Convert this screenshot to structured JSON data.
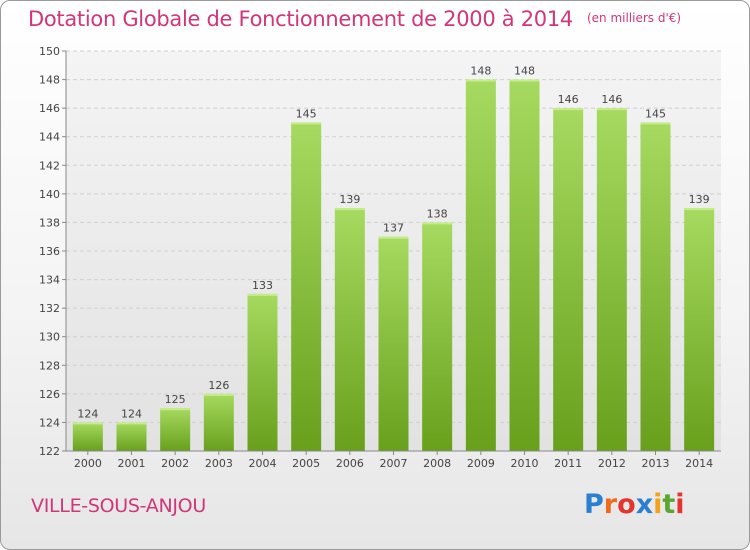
{
  "chart_data": {
    "type": "bar",
    "title": "Dotation Globale de Fonctionnement de 2000 à 2014",
    "unit_note": "(en milliers d'€)",
    "categories": [
      "2000",
      "2001",
      "2002",
      "2003",
      "2004",
      "2005",
      "2006",
      "2007",
      "2008",
      "2009",
      "2010",
      "2011",
      "2012",
      "2013",
      "2014"
    ],
    "values": [
      124,
      124,
      125,
      126,
      133,
      145,
      139,
      137,
      138,
      148,
      148,
      146,
      146,
      145,
      139
    ],
    "data_labels": [
      "124",
      "124",
      "125",
      "126",
      "133",
      "145",
      "139",
      "137",
      "138",
      "148",
      "148",
      "146",
      "146",
      "145",
      "139"
    ],
    "ylim": [
      122,
      150
    ],
    "yticks": [
      "122",
      "124",
      "126",
      "128",
      "130",
      "132",
      "134",
      "136",
      "138",
      "140",
      "142",
      "144",
      "146",
      "148",
      "150"
    ],
    "grid": true,
    "bar_color_top": "#9fd45a",
    "bar_color_bottom": "#6aa01e",
    "title_color": "#d1357a"
  },
  "location": "VILLE-SOUS-ANJOU",
  "logo": {
    "p": "P",
    "r": "r",
    "o": "o",
    "x": "x",
    "i1": "i",
    "t": "t",
    "i2": "i",
    "colors": [
      "#2a7fd0",
      "#ee6b1c",
      "#e3342f",
      "#2a7fd0",
      "#f2a21c",
      "#5aa630",
      "#e3342f"
    ]
  }
}
